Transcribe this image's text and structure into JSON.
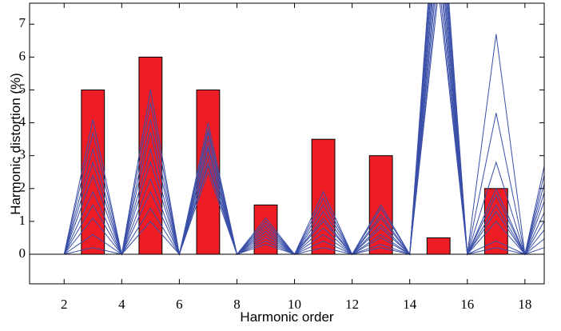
{
  "chart_data": {
    "type": "combo",
    "x_label": "Harmonic order",
    "y_label": "Harmonic distortion (%)",
    "xlim": [
      0.8,
      18.67
    ],
    "ylim": [
      -0.9,
      7.64
    ],
    "xticks": [
      2,
      4,
      6,
      8,
      10,
      12,
      14,
      16,
      18
    ],
    "yticks": [
      0,
      1,
      2,
      3,
      4,
      5,
      6,
      7
    ],
    "bars": {
      "color": "#ee1c25",
      "x": [
        3,
        5,
        7,
        9,
        11,
        13,
        15,
        17
      ],
      "values": [
        5,
        6,
        5,
        1.5,
        3.5,
        3,
        0.5,
        2
      ]
    },
    "lines": {
      "color": "#3a4fa8",
      "x": [
        1,
        2,
        3,
        4,
        5,
        6,
        7,
        8,
        9,
        10,
        11,
        12,
        13,
        14,
        15,
        16,
        17,
        18,
        19
      ],
      "series": [
        {
          "values": [
            0,
            0,
            0.2,
            0,
            1.0,
            0,
            2.5,
            0,
            0.3,
            0,
            0.2,
            0,
            0.2,
            0,
            8,
            0,
            0.2,
            0,
            0.3
          ]
        },
        {
          "values": [
            0,
            0,
            0.6,
            0,
            1.4,
            0,
            2.7,
            0,
            0.4,
            0,
            0.4,
            0,
            0.3,
            0,
            8.4,
            0,
            0.4,
            0,
            0.7
          ]
        },
        {
          "values": [
            0,
            0,
            1.1,
            0,
            1.9,
            0,
            2.8,
            0,
            0.5,
            0,
            0.6,
            0,
            0.5,
            0,
            8.9,
            0,
            1.0,
            0,
            1.1
          ]
        },
        {
          "values": [
            0,
            0,
            1.5,
            0,
            2.3,
            0,
            3.0,
            0,
            0.6,
            0,
            0.8,
            0,
            0.6,
            0,
            9.3,
            0,
            1.3,
            0,
            1.5
          ]
        },
        {
          "values": [
            0,
            0,
            1.9,
            0,
            2.8,
            0,
            3.2,
            0,
            0.7,
            0,
            1.0,
            0,
            0.8,
            0,
            9.8,
            0,
            1.5,
            0,
            1.9
          ]
        },
        {
          "values": [
            0,
            0,
            2.4,
            0,
            3.2,
            0,
            3.3,
            0,
            0.7,
            0,
            1.1,
            0,
            0.9,
            0,
            10.2,
            0,
            1.8,
            0,
            2.4
          ]
        },
        {
          "values": [
            0,
            0,
            2.8,
            0,
            3.7,
            0,
            3.5,
            0,
            0.8,
            0,
            1.3,
            0,
            1.1,
            0,
            10.7,
            0,
            2.0,
            0,
            2.8
          ]
        },
        {
          "values": [
            0,
            0,
            3.2,
            0,
            4.1,
            0,
            3.7,
            0,
            0.9,
            0,
            1.5,
            0,
            1.2,
            0,
            11.1,
            0,
            2.8,
            0,
            3.2
          ]
        },
        {
          "values": [
            0,
            0,
            3.7,
            0,
            4.6,
            0,
            3.8,
            0,
            1.0,
            0,
            1.7,
            0,
            1.4,
            0,
            11.6,
            0,
            4.3,
            0,
            3.6
          ]
        },
        {
          "values": [
            0,
            0,
            4.1,
            0,
            5.0,
            0,
            4.0,
            0,
            1.1,
            0,
            1.9,
            0,
            1.5,
            0,
            12,
            0,
            6.7,
            0,
            4.0
          ]
        }
      ]
    }
  }
}
